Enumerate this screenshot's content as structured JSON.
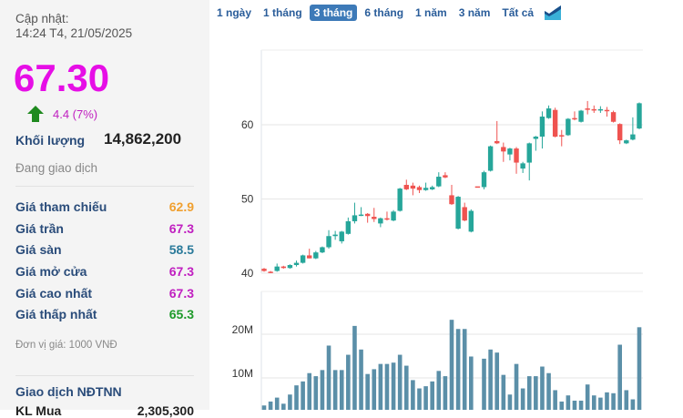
{
  "info": {
    "update_label": "Cập nhật:",
    "update_time": "14:24 T4, 21/05/2025",
    "price": "67.30",
    "change": "4.4 (7%)",
    "volume_label": "Khối lượng",
    "volume": "14,862,200",
    "status": "Đang giao dịch",
    "rows": [
      {
        "label": "Giá tham chiếu",
        "value": "62.9",
        "color": "#f0a030"
      },
      {
        "label": "Giá trần",
        "value": "67.3",
        "color": "#c01fc0"
      },
      {
        "label": "Giá sàn",
        "value": "58.5",
        "color": "#2a7a9a"
      },
      {
        "label": "Giá mở cửa",
        "value": "67.3",
        "color": "#c01fc0"
      },
      {
        "label": "Giá cao nhất",
        "value": "67.3",
        "color": "#c01fc0"
      },
      {
        "label": "Giá thấp nhất",
        "value": "65.3",
        "color": "#1e9a2a"
      }
    ],
    "unit": "Đơn vị giá: 1000 VNĐ",
    "foreign_title": "Giao dịch NĐTNN",
    "foreign_buy_label": "KL Mua",
    "foreign_buy_value": "2,305,300"
  },
  "tabs": [
    "1 ngày",
    "1 tháng",
    "3 tháng",
    "6 tháng",
    "1 năm",
    "3 năm",
    "Tất cả"
  ],
  "active_tab": "3 tháng",
  "chart_data": {
    "type": "candlestick",
    "price_ticks": [
      40,
      50,
      60
    ],
    "price_ylim": [
      35,
      65
    ],
    "volume_ticks": [
      "10M",
      "20M"
    ],
    "volume_ylim_millions": [
      0,
      25
    ],
    "colors": {
      "up": "#26a69a",
      "down": "#ef5350",
      "volume": "#5b8fa8"
    },
    "ohlc": [
      [
        40.6,
        40.7,
        40.2,
        40.3
      ],
      [
        40.2,
        40.3,
        40.0,
        40.1
      ],
      [
        40.3,
        41.3,
        40.2,
        40.9
      ],
      [
        40.9,
        41.0,
        40.6,
        40.7
      ],
      [
        40.7,
        41.2,
        40.6,
        41.1
      ],
      [
        41.1,
        41.7,
        40.9,
        41.4
      ],
      [
        41.4,
        42.5,
        41.3,
        42.4
      ],
      [
        42.4,
        43.3,
        42.0,
        42.0
      ],
      [
        42.0,
        43.0,
        41.9,
        42.8
      ],
      [
        42.8,
        43.6,
        42.7,
        43.5
      ],
      [
        43.5,
        45.8,
        43.3,
        45.0
      ],
      [
        45.0,
        45.7,
        44.5,
        45.2
      ],
      [
        44.3,
        45.7,
        44.0,
        45.6
      ],
      [
        45.3,
        47.5,
        45.2,
        47.0
      ],
      [
        47.0,
        49.5,
        46.7,
        47.8
      ],
      [
        47.8,
        48.9,
        47.7,
        47.9
      ],
      [
        48.0,
        48.1,
        46.8,
        47.7
      ],
      [
        47.6,
        48.8,
        46.9,
        47.3
      ],
      [
        46.7,
        47.5,
        46.2,
        47.4
      ],
      [
        47.4,
        48.3,
        47.1,
        47.3
      ],
      [
        47.1,
        48.5,
        47.0,
        48.3
      ],
      [
        48.4,
        51.5,
        48.3,
        51.4
      ],
      [
        51.9,
        52.6,
        51.2,
        51.3
      ],
      [
        51.8,
        52.2,
        50.5,
        51.4
      ],
      [
        51.6,
        51.8,
        50.8,
        51.2
      ],
      [
        51.2,
        52.2,
        51.1,
        51.5
      ],
      [
        51.3,
        51.8,
        51.2,
        51.6
      ],
      [
        51.7,
        53.6,
        51.6,
        53.0
      ],
      [
        53.2,
        53.6,
        52.8,
        52.9
      ],
      [
        50.5,
        51.9,
        49.2,
        49.3
      ],
      [
        46.0,
        50.4,
        45.9,
        50.3
      ],
      [
        48.9,
        49.5,
        47.0,
        47.1
      ],
      [
        45.6,
        48.6,
        45.5,
        48.4
      ],
      [
        51.7,
        51.7,
        51.7,
        51.6
      ],
      [
        51.6,
        53.8,
        51.3,
        53.6
      ],
      [
        53.8,
        57.2,
        53.7,
        57.1
      ],
      [
        57.8,
        60.5,
        57.4,
        57.5
      ],
      [
        57.0,
        57.6,
        55.0,
        56.4
      ],
      [
        56.0,
        56.9,
        55.2,
        56.8
      ],
      [
        56.8,
        57.0,
        53.4,
        54.9
      ],
      [
        54.1,
        55.0,
        53.5,
        54.8
      ],
      [
        54.9,
        57.6,
        52.5,
        57.5
      ],
      [
        58.1,
        58.5,
        56.5,
        58.4
      ],
      [
        58.4,
        61.8,
        56.8,
        61.1
      ],
      [
        60.9,
        62.6,
        60.8,
        62.2
      ],
      [
        62.0,
        62.3,
        58.3,
        58.4
      ],
      [
        58.6,
        59.3,
        57.1,
        58.5
      ],
      [
        58.6,
        60.9,
        58.5,
        60.8
      ],
      [
        60.9,
        61.8,
        60.6,
        60.8
      ],
      [
        60.4,
        62.0,
        60.3,
        61.9
      ],
      [
        62.2,
        63.2,
        61.4,
        62.1
      ],
      [
        62.1,
        62.6,
        61.6,
        62.0
      ],
      [
        62.0,
        62.5,
        61.6,
        62.1
      ],
      [
        62.0,
        62.4,
        61.1,
        61.9
      ],
      [
        61.7,
        61.9,
        60.3,
        60.4
      ],
      [
        60.1,
        60.2,
        57.4,
        57.9
      ],
      [
        57.5,
        58.0,
        57.4,
        57.9
      ],
      [
        58.0,
        61.0,
        57.9,
        58.7
      ],
      [
        59.5,
        63.0,
        59.4,
        62.9
      ]
    ],
    "volume_millions": [
      3.7,
      4.6,
      5.5,
      4.1,
      6.2,
      8.3,
      9.2,
      11.1,
      10.4,
      11.8,
      17.4,
      11.8,
      11.8,
      15.3,
      21.9,
      16.5,
      10.9,
      12.0,
      13.2,
      13.2,
      13.5,
      15.3,
      12.8,
      9.5,
      7.6,
      8.1,
      9.2,
      11.6,
      10.4,
      23.3,
      21.2,
      21.2,
      14.9,
      0.5,
      14.4,
      16.5,
      15.8,
      10.7,
      6.2,
      13.2,
      7.6,
      10.4,
      10.4,
      12.6,
      11.1,
      7.2,
      4.6,
      6.0,
      4.8,
      4.8,
      8.5,
      6.0,
      5.5,
      6.7,
      6.5,
      17.6,
      7.2,
      5.1,
      21.6
    ]
  }
}
